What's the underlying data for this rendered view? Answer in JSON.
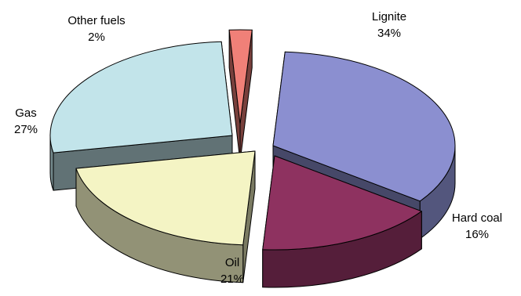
{
  "chart_data": {
    "type": "pie",
    "slices": [
      {
        "label": "Lignite",
        "value": 34,
        "value_label": "34%",
        "color": "#8B8FD0"
      },
      {
        "label": "Hard coal",
        "value": 16,
        "value_label": "16%",
        "color": "#8E3260"
      },
      {
        "label": "Oil",
        "value": 21,
        "value_label": "21%",
        "color": "#F4F4C4"
      },
      {
        "label": "Gas",
        "value": 27,
        "value_label": "27%",
        "color": "#C2E4EA"
      },
      {
        "label": "Other fuels",
        "value": 2,
        "value_label": "2%",
        "color": "#F08078"
      }
    ],
    "exploded": true,
    "three_d": true,
    "legend": "none",
    "title": ""
  }
}
